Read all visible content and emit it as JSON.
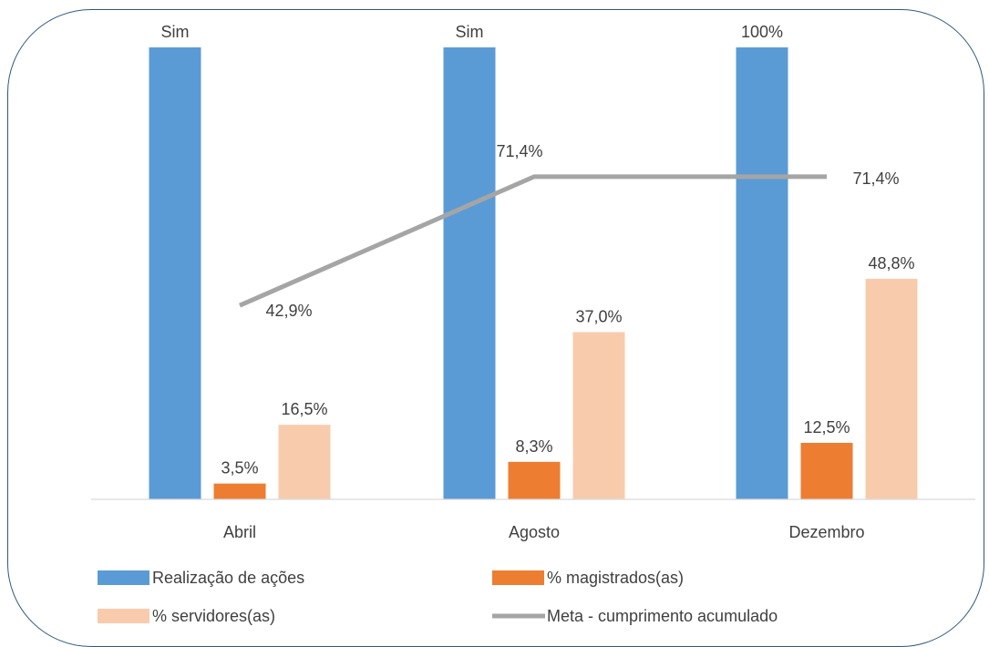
{
  "chart_data": {
    "type": "bar",
    "categories": [
      "Abril",
      "Agosto",
      "Dezembro"
    ],
    "ylim": [
      0,
      100
    ],
    "series": [
      {
        "name": "Realização de ações",
        "kind": "bar",
        "color": "#5b9bd5",
        "values": [
          100,
          100,
          100
        ],
        "labels": [
          "Sim",
          "Sim",
          "100%"
        ]
      },
      {
        "name": "% magistrados(as)",
        "kind": "bar",
        "color": "#ed7d31",
        "values": [
          3.5,
          8.3,
          12.5
        ],
        "labels": [
          "3,5%",
          "8,3%",
          "12,5%"
        ]
      },
      {
        "name": "% servidores(as)",
        "kind": "bar",
        "color": "#f8cbad",
        "values": [
          16.5,
          37.0,
          48.8
        ],
        "labels": [
          "16,5%",
          "37,0%",
          "48,8%"
        ]
      },
      {
        "name": "Meta - cumprimento acumulado",
        "kind": "line",
        "color": "#a5a5a5",
        "values": [
          42.9,
          71.4,
          71.4
        ],
        "labels": [
          "42,9%",
          "71,4%",
          "71,4%"
        ]
      }
    ],
    "legend_position": "bottom",
    "grid": false
  }
}
